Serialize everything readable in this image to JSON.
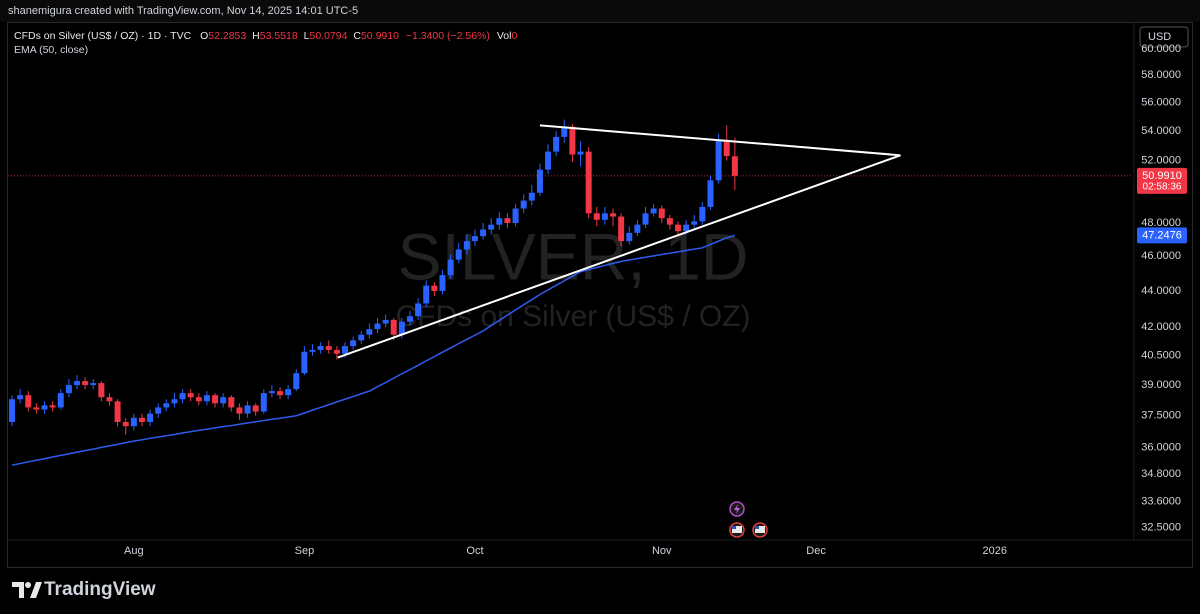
{
  "attribution": "shanemigura created with TradingView.com, Nov 14, 2025 14:01 UTC-5",
  "footer": {
    "brand": "TradingView"
  },
  "chart_data": {
    "type": "candlestick",
    "header": {
      "title": "CFDs on Silver (US$ / OZ) · 1D · TVC",
      "keys": [
        "O",
        "H",
        "L",
        "C"
      ],
      "change": "−1.3400 (−2.56%)",
      "volume_key": "Vol",
      "volume": 0
    },
    "watermark": "SILVER, 1D",
    "currency": "USD",
    "log_scale": true,
    "grid": false,
    "ylim": [
      31.98,
      62.1
    ],
    "yticks": [
      {
        "value": 32.5,
        "label": "32.5000"
      },
      {
        "value": 33.6,
        "label": "33.6000"
      },
      {
        "value": 34.8,
        "label": "34.8000"
      },
      {
        "value": 36,
        "label": "36.0000"
      },
      {
        "value": 37.5,
        "label": "37.5000"
      },
      {
        "value": 39,
        "label": "39.0000"
      },
      {
        "value": 40.5,
        "label": "40.5000"
      },
      {
        "value": 42,
        "label": "42.0000"
      },
      {
        "value": 44,
        "label": "44.0000"
      },
      {
        "value": 46,
        "label": "46.0000"
      },
      {
        "value": 48,
        "label": "48.0000"
      },
      {
        "value": 52,
        "label": "52.0000"
      },
      {
        "value": 54,
        "label": "54.0000"
      },
      {
        "value": 56,
        "label": "56.0000"
      },
      {
        "value": 58,
        "label": "58.0000"
      },
      {
        "value": 60,
        "label": "60.0000"
      }
    ],
    "xlim": [
      -1.48,
      137.9
    ],
    "xticks": [
      {
        "value": 15,
        "label": "Aug"
      },
      {
        "value": 36,
        "label": "Sep"
      },
      {
        "value": 57,
        "label": "Oct"
      },
      {
        "value": 80,
        "label": "Nov"
      },
      {
        "value": 99,
        "label": "Dec"
      },
      {
        "value": 121,
        "label": "2026"
      }
    ],
    "series": [
      {
        "name": "CFDs on Silver (US$ / OZ)",
        "up_color": "#2962ff",
        "down_color": "#f23645",
        "open": [
          37.2,
          38.3,
          38.5,
          37.9,
          37.8,
          38.0,
          37.9,
          38.6,
          39.0,
          39.2,
          39.0,
          39.1,
          38.4,
          38.2,
          37.2,
          37.0,
          37.4,
          37.2,
          37.6,
          37.9,
          38.1,
          38.3,
          38.6,
          38.4,
          38.2,
          38.5,
          38.1,
          38.4,
          37.9,
          37.6,
          38.0,
          37.7,
          38.6,
          38.7,
          38.5,
          38.8,
          39.6,
          40.7,
          40.8,
          41.0,
          40.8,
          40.6,
          41.0,
          41.3,
          41.6,
          41.9,
          42.2,
          42.4,
          41.6,
          42.3,
          42.6,
          43.3,
          44.3,
          44.0,
          44.9,
          45.8,
          46.4,
          46.9,
          47.2,
          47.6,
          47.9,
          48.3,
          48.0,
          48.9,
          49.4,
          49.9,
          51.4,
          52.6,
          53.6,
          54.3,
          52.4,
          52.6,
          48.6,
          48.2,
          48.6,
          48.4,
          46.9,
          47.4,
          47.9,
          48.6,
          48.9,
          48.3,
          47.9,
          47.5,
          47.9,
          48.1,
          49.0,
          50.7,
          53.4,
          52.2853
        ],
        "high": [
          38.5,
          38.8,
          38.7,
          38.1,
          38.2,
          38.2,
          38.8,
          39.3,
          39.5,
          39.4,
          39.3,
          39.2,
          38.6,
          38.3,
          37.4,
          37.6,
          37.6,
          37.8,
          38.1,
          38.3,
          38.6,
          38.8,
          38.8,
          38.6,
          38.7,
          38.6,
          38.6,
          38.5,
          38.1,
          38.2,
          38.1,
          38.8,
          39.0,
          38.9,
          39.0,
          39.8,
          41.0,
          41.1,
          41.2,
          41.3,
          41.0,
          41.2,
          41.5,
          41.8,
          42.2,
          42.5,
          42.7,
          42.5,
          42.5,
          42.9,
          43.6,
          44.6,
          44.5,
          45.2,
          46.1,
          46.8,
          47.3,
          47.6,
          48.0,
          48.3,
          48.7,
          48.6,
          49.2,
          49.8,
          50.4,
          51.8,
          53.1,
          54.0,
          54.8,
          54.5,
          53.3,
          52.9,
          49.0,
          49.0,
          48.9,
          48.6,
          47.8,
          48.2,
          49.0,
          49.2,
          49.1,
          48.5,
          48.1,
          48.2,
          48.5,
          49.3,
          51.0,
          53.8,
          54.4,
          53.5518
        ],
        "low": [
          37.0,
          38.1,
          37.7,
          37.6,
          37.6,
          37.7,
          37.8,
          38.4,
          38.8,
          38.8,
          38.8,
          38.2,
          38.0,
          37.0,
          36.6,
          36.8,
          37.0,
          37.0,
          37.4,
          37.7,
          37.9,
          38.1,
          38.2,
          38.0,
          38.0,
          37.9,
          37.9,
          37.7,
          37.3,
          37.4,
          37.5,
          37.6,
          38.4,
          38.3,
          38.3,
          38.7,
          39.5,
          40.5,
          40.6,
          40.6,
          40.3,
          40.4,
          40.8,
          41.1,
          41.4,
          41.7,
          42.0,
          41.3,
          41.4,
          42.1,
          42.4,
          43.1,
          43.7,
          43.8,
          44.7,
          45.6,
          46.1,
          46.6,
          47.0,
          47.3,
          47.6,
          47.7,
          47.8,
          48.6,
          49.1,
          49.7,
          51.1,
          52.3,
          53.2,
          51.9,
          51.6,
          48.3,
          47.8,
          47.9,
          47.8,
          46.6,
          46.7,
          47.2,
          47.7,
          48.4,
          48.0,
          47.6,
          47.2,
          47.3,
          47.7,
          47.9,
          48.8,
          50.5,
          52.0,
          50.0794
        ],
        "close": [
          38.3,
          38.5,
          37.9,
          37.8,
          38.0,
          37.9,
          38.6,
          39.0,
          39.2,
          39.0,
          39.1,
          38.4,
          38.2,
          37.2,
          37.0,
          37.4,
          37.2,
          37.6,
          37.9,
          38.1,
          38.3,
          38.6,
          38.4,
          38.2,
          38.5,
          38.1,
          38.4,
          37.9,
          37.6,
          38.0,
          37.7,
          38.6,
          38.7,
          38.5,
          38.8,
          39.6,
          40.7,
          40.8,
          41.0,
          40.8,
          40.6,
          41.0,
          41.3,
          41.6,
          41.9,
          42.2,
          42.4,
          41.6,
          42.3,
          42.6,
          43.3,
          44.3,
          44.0,
          44.9,
          45.8,
          46.4,
          46.9,
          47.2,
          47.6,
          47.9,
          48.3,
          48.0,
          48.9,
          49.4,
          49.9,
          51.4,
          52.6,
          53.6,
          54.3,
          52.4,
          52.6,
          48.6,
          48.2,
          48.6,
          48.4,
          46.9,
          47.4,
          47.9,
          48.6,
          48.9,
          48.3,
          47.9,
          47.5,
          47.9,
          48.1,
          49.0,
          50.7,
          53.4,
          52.3,
          50.991
        ],
        "last_label": "50.9910",
        "countdown": "02:58:36"
      },
      {
        "name": "EMA (50, close)",
        "color": "#2f5cf0",
        "values": [
          35.2,
          35.27,
          35.35,
          35.42,
          35.49,
          35.57,
          35.64,
          35.71,
          35.79,
          35.86,
          35.93,
          36.01,
          36.08,
          36.15,
          36.23,
          36.3,
          36.36,
          36.43,
          36.49,
          36.55,
          36.61,
          36.68,
          36.74,
          36.8,
          36.86,
          36.92,
          36.98,
          37.03,
          37.09,
          37.15,
          37.21,
          37.27,
          37.33,
          37.38,
          37.44,
          37.5,
          37.63,
          37.77,
          37.9,
          38.03,
          38.17,
          38.3,
          38.43,
          38.57,
          38.7,
          38.92,
          39.13,
          39.35,
          39.57,
          39.78,
          40.0,
          40.23,
          40.45,
          40.68,
          40.9,
          41.13,
          41.35,
          41.58,
          41.8,
          42.09,
          42.37,
          42.66,
          42.94,
          43.23,
          43.51,
          43.8,
          44.06,
          44.32,
          44.58,
          44.84,
          45.1,
          45.22,
          45.34,
          45.46,
          45.58,
          45.7,
          45.78,
          45.86,
          45.94,
          46.02,
          46.1,
          46.18,
          46.26,
          46.34,
          46.42,
          46.5,
          46.7,
          46.9,
          47.1,
          47.2476
        ]
      }
    ],
    "trendlines": [
      {
        "x": [
          65.0,
          109.4
        ],
        "y": [
          54.4,
          52.35
        ]
      },
      {
        "x": [
          40.1,
          109.4
        ],
        "y": [
          40.4,
          52.35
        ]
      }
    ]
  }
}
